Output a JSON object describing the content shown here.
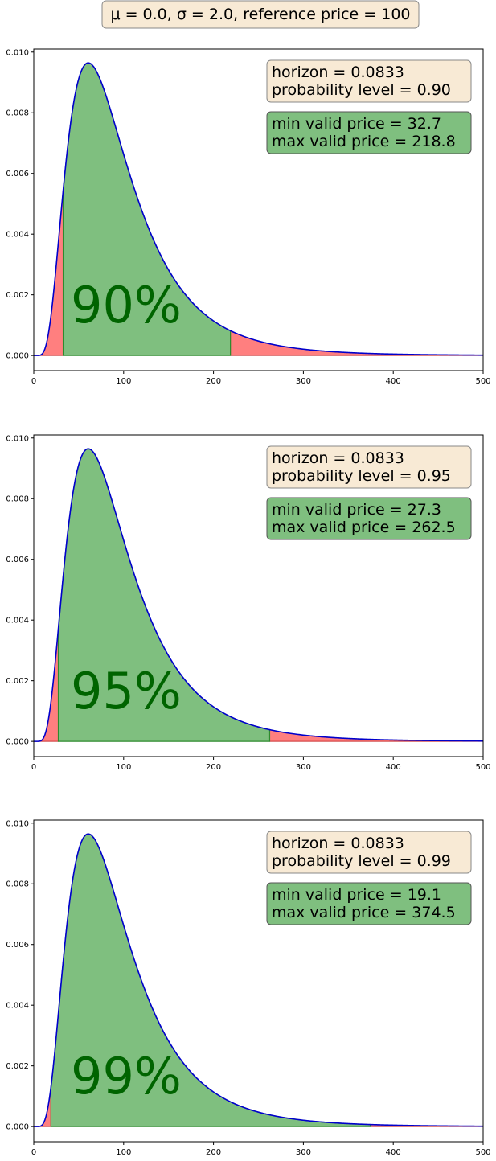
{
  "figure_title": "μ = 0.0, σ = 2.0, reference price = 100",
  "colors": {
    "curve": "#0000cc",
    "inner_fill": "#7fbf7f",
    "inner_edge": "#2e8b2e",
    "tail_fill": "#ff7f7f",
    "tail_edge": "#cc3333",
    "big_label": "#006400",
    "info_box": "#f8ead5",
    "result_box": "#7fbf7f"
  },
  "chart_data": [
    {
      "type": "area",
      "subtype": "lognormal-pdf",
      "mu": 0.0,
      "sigma": 2.0,
      "reference_price": 100,
      "horizon": 0.0833,
      "xlim": [
        0,
        500
      ],
      "ylim": [
        -0.0005,
        0.0101
      ],
      "xticks": [
        "0",
        "100",
        "200",
        "300",
        "400",
        "500"
      ],
      "yticks": [
        "0.000",
        "0.002",
        "0.004",
        "0.006",
        "0.008",
        "0.010"
      ],
      "grid": false,
      "info_lines": [
        "horizon = 0.0833",
        "probability level = 0.90"
      ],
      "result_lines": [
        "min valid price  = 32.7",
        "max valid price = 218.8"
      ],
      "big_label": "90%",
      "lower": 32.7,
      "upper": 218.8
    },
    {
      "type": "area",
      "subtype": "lognormal-pdf",
      "mu": 0.0,
      "sigma": 2.0,
      "reference_price": 100,
      "horizon": 0.0833,
      "xlim": [
        0,
        500
      ],
      "ylim": [
        -0.0005,
        0.0101
      ],
      "xticks": [
        "0",
        "100",
        "200",
        "300",
        "400",
        "500"
      ],
      "yticks": [
        "0.000",
        "0.002",
        "0.004",
        "0.006",
        "0.008",
        "0.010"
      ],
      "grid": false,
      "info_lines": [
        "horizon = 0.0833",
        "probability level = 0.95"
      ],
      "result_lines": [
        "min valid price  = 27.3",
        "max valid price = 262.5"
      ],
      "big_label": "95%",
      "lower": 27.3,
      "upper": 262.5
    },
    {
      "type": "area",
      "subtype": "lognormal-pdf",
      "mu": 0.0,
      "sigma": 2.0,
      "reference_price": 100,
      "horizon": 0.0833,
      "xlim": [
        0,
        500
      ],
      "ylim": [
        -0.0005,
        0.0101
      ],
      "xticks": [
        "0",
        "100",
        "200",
        "300",
        "400",
        "500"
      ],
      "yticks": [
        "0.000",
        "0.002",
        "0.004",
        "0.006",
        "0.008",
        "0.010"
      ],
      "grid": false,
      "info_lines": [
        "horizon = 0.0833",
        "probability level = 0.99"
      ],
      "result_lines": [
        "min valid price  = 19.1",
        "max valid price = 374.5"
      ],
      "big_label": "99%",
      "lower": 19.1,
      "upper": 374.5
    }
  ]
}
